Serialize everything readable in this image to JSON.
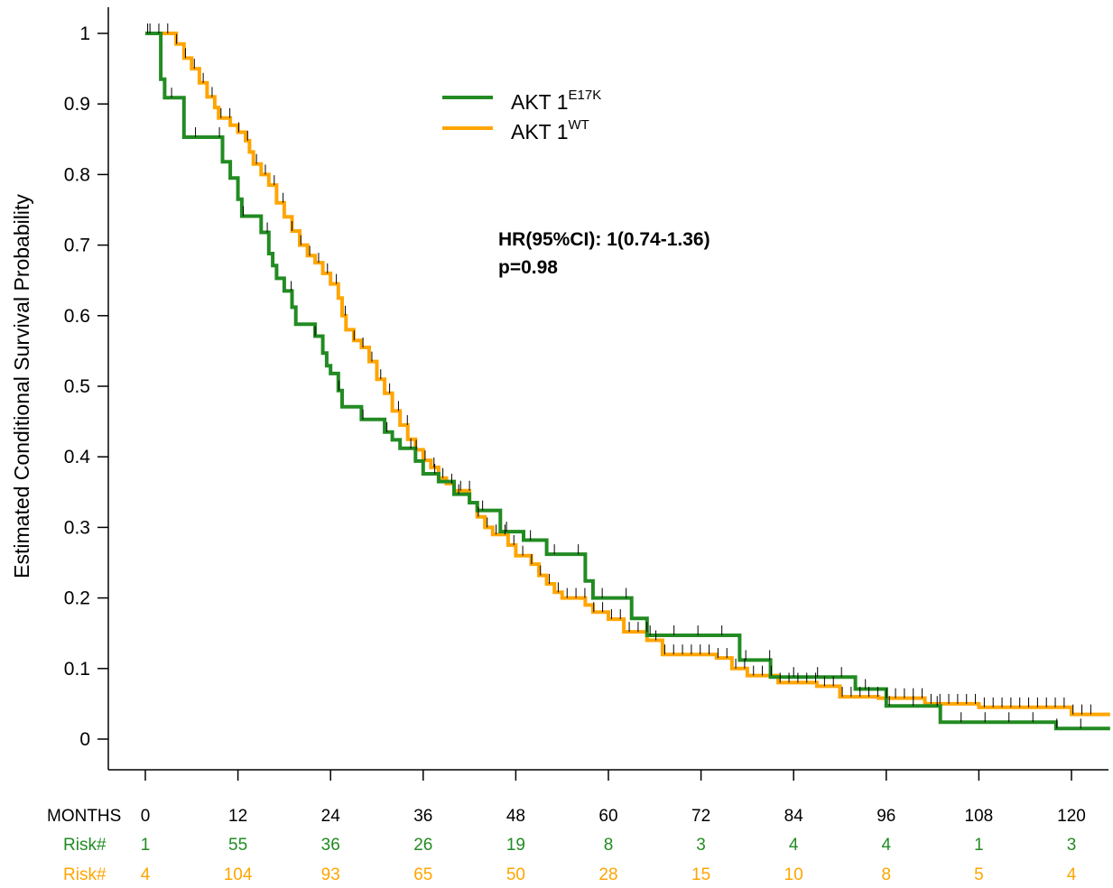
{
  "chart_data": {
    "type": "line",
    "step": true,
    "ylabel": "Estimated Conditional Survival Probability",
    "xlabel": "",
    "xlim": [
      -8,
      125
    ],
    "ylim": [
      0,
      1
    ],
    "x_ticks": [
      0,
      12,
      24,
      36,
      48,
      60,
      72,
      84,
      96,
      108,
      120
    ],
    "y_ticks": [
      0,
      0.1,
      0.2,
      0.3,
      0.4,
      0.5,
      0.6,
      0.7,
      0.8,
      0.9,
      1
    ],
    "y_tick_labels": [
      "0",
      "0.1",
      "0.2",
      "0.3",
      "0.4",
      "0.5",
      "0.6",
      "0.7",
      "0.8",
      "0.9",
      "1"
    ],
    "grid": false,
    "legend_position": "top-center",
    "annotation": {
      "hr_line": "HR(95%CI): 1(0.74-1.36)",
      "p_line": "p=0.98"
    },
    "series": [
      {
        "name": "AKT 1",
        "name_sup": "E17K",
        "color": "#228B22",
        "points": [
          [
            0,
            1.0
          ],
          [
            2,
            1.0
          ],
          [
            2,
            0.935
          ],
          [
            2.5,
            0.935
          ],
          [
            2.5,
            0.909
          ],
          [
            5,
            0.909
          ],
          [
            5,
            0.853
          ],
          [
            10,
            0.853
          ],
          [
            10,
            0.818
          ],
          [
            11,
            0.818
          ],
          [
            11,
            0.795
          ],
          [
            12,
            0.795
          ],
          [
            12,
            0.765
          ],
          [
            12.5,
            0.765
          ],
          [
            12.5,
            0.741
          ],
          [
            15,
            0.741
          ],
          [
            15,
            0.718
          ],
          [
            16,
            0.718
          ],
          [
            16,
            0.688
          ],
          [
            16.5,
            0.688
          ],
          [
            16.5,
            0.671
          ],
          [
            17,
            0.671
          ],
          [
            17,
            0.653
          ],
          [
            18,
            0.653
          ],
          [
            18,
            0.635
          ],
          [
            19,
            0.635
          ],
          [
            19,
            0.612
          ],
          [
            19.5,
            0.612
          ],
          [
            19.5,
            0.588
          ],
          [
            22,
            0.588
          ],
          [
            22,
            0.571
          ],
          [
            23,
            0.571
          ],
          [
            23,
            0.547
          ],
          [
            23.5,
            0.547
          ],
          [
            23.5,
            0.529
          ],
          [
            24,
            0.529
          ],
          [
            24,
            0.518
          ],
          [
            25,
            0.518
          ],
          [
            25,
            0.494
          ],
          [
            25.5,
            0.494
          ],
          [
            25.5,
            0.471
          ],
          [
            28,
            0.471
          ],
          [
            28,
            0.453
          ],
          [
            31,
            0.453
          ],
          [
            31,
            0.435
          ],
          [
            32,
            0.435
          ],
          [
            32,
            0.424
          ],
          [
            33,
            0.424
          ],
          [
            33,
            0.412
          ],
          [
            35,
            0.412
          ],
          [
            35,
            0.394
          ],
          [
            36,
            0.394
          ],
          [
            36,
            0.376
          ],
          [
            38,
            0.376
          ],
          [
            38,
            0.365
          ],
          [
            40,
            0.365
          ],
          [
            40,
            0.347
          ],
          [
            42,
            0.347
          ],
          [
            42,
            0.335
          ],
          [
            43,
            0.335
          ],
          [
            43,
            0.324
          ],
          [
            46,
            0.324
          ],
          [
            46,
            0.294
          ],
          [
            49,
            0.294
          ],
          [
            49,
            0.282
          ],
          [
            52,
            0.282
          ],
          [
            52,
            0.262
          ],
          [
            57,
            0.262
          ],
          [
            57,
            0.224
          ],
          [
            58,
            0.224
          ],
          [
            58,
            0.2
          ],
          [
            63,
            0.2
          ],
          [
            63,
            0.171
          ],
          [
            65,
            0.171
          ],
          [
            65,
            0.147
          ],
          [
            77,
            0.147
          ],
          [
            77,
            0.112
          ],
          [
            81,
            0.112
          ],
          [
            81,
            0.088
          ],
          [
            92,
            0.088
          ],
          [
            92,
            0.071
          ],
          [
            96,
            0.071
          ],
          [
            96,
            0.047
          ],
          [
            103,
            0.047
          ],
          [
            103,
            0.024
          ],
          [
            118,
            0.024
          ],
          [
            118,
            0.015
          ],
          [
            125,
            0.015
          ]
        ]
      },
      {
        "name": "AKT 1",
        "name_sup": "WT",
        "color": "#FFA500",
        "points": [
          [
            0,
            1.0
          ],
          [
            4,
            1.0
          ],
          [
            4,
            0.985
          ],
          [
            5,
            0.985
          ],
          [
            5,
            0.965
          ],
          [
            6,
            0.965
          ],
          [
            6,
            0.95
          ],
          [
            7,
            0.95
          ],
          [
            7,
            0.93
          ],
          [
            8,
            0.93
          ],
          [
            8,
            0.91
          ],
          [
            9,
            0.91
          ],
          [
            9,
            0.895
          ],
          [
            9.5,
            0.895
          ],
          [
            9.5,
            0.88
          ],
          [
            11,
            0.88
          ],
          [
            11,
            0.87
          ],
          [
            12,
            0.87
          ],
          [
            12,
            0.86
          ],
          [
            13,
            0.86
          ],
          [
            13,
            0.848
          ],
          [
            13.5,
            0.848
          ],
          [
            13.5,
            0.832
          ],
          [
            14,
            0.832
          ],
          [
            14,
            0.815
          ],
          [
            15,
            0.815
          ],
          [
            15,
            0.8
          ],
          [
            16,
            0.8
          ],
          [
            16,
            0.785
          ],
          [
            17,
            0.785
          ],
          [
            17,
            0.76
          ],
          [
            18,
            0.76
          ],
          [
            18,
            0.74
          ],
          [
            19,
            0.74
          ],
          [
            19,
            0.72
          ],
          [
            20,
            0.72
          ],
          [
            20,
            0.7
          ],
          [
            21,
            0.7
          ],
          [
            21,
            0.685
          ],
          [
            22,
            0.685
          ],
          [
            22,
            0.675
          ],
          [
            23,
            0.675
          ],
          [
            23,
            0.66
          ],
          [
            24,
            0.66
          ],
          [
            24,
            0.645
          ],
          [
            25,
            0.645
          ],
          [
            25,
            0.625
          ],
          [
            25.5,
            0.625
          ],
          [
            25.5,
            0.6
          ],
          [
            26,
            0.6
          ],
          [
            26,
            0.58
          ],
          [
            27,
            0.58
          ],
          [
            27,
            0.565
          ],
          [
            28,
            0.565
          ],
          [
            28,
            0.555
          ],
          [
            29,
            0.555
          ],
          [
            29,
            0.535
          ],
          [
            30,
            0.535
          ],
          [
            30,
            0.51
          ],
          [
            31,
            0.51
          ],
          [
            31,
            0.49
          ],
          [
            32,
            0.49
          ],
          [
            32,
            0.465
          ],
          [
            33,
            0.465
          ],
          [
            33,
            0.445
          ],
          [
            34,
            0.445
          ],
          [
            34,
            0.425
          ],
          [
            35,
            0.425
          ],
          [
            35,
            0.41
          ],
          [
            36,
            0.41
          ],
          [
            36,
            0.395
          ],
          [
            37,
            0.395
          ],
          [
            37,
            0.385
          ],
          [
            38,
            0.385
          ],
          [
            38,
            0.37
          ],
          [
            39,
            0.37
          ],
          [
            39,
            0.362
          ],
          [
            40,
            0.362
          ],
          [
            40,
            0.352
          ],
          [
            42,
            0.352
          ],
          [
            42,
            0.335
          ],
          [
            43,
            0.335
          ],
          [
            43,
            0.315
          ],
          [
            44,
            0.315
          ],
          [
            44,
            0.3
          ],
          [
            45,
            0.3
          ],
          [
            45,
            0.29
          ],
          [
            47,
            0.29
          ],
          [
            47,
            0.275
          ],
          [
            48,
            0.275
          ],
          [
            48,
            0.26
          ],
          [
            50,
            0.26
          ],
          [
            50,
            0.248
          ],
          [
            51,
            0.248
          ],
          [
            51,
            0.232
          ],
          [
            52,
            0.232
          ],
          [
            52,
            0.22
          ],
          [
            53,
            0.22
          ],
          [
            53,
            0.208
          ],
          [
            54,
            0.208
          ],
          [
            54,
            0.2
          ],
          [
            57,
            0.2
          ],
          [
            57,
            0.19
          ],
          [
            58,
            0.19
          ],
          [
            58,
            0.18
          ],
          [
            60,
            0.18
          ],
          [
            60,
            0.17
          ],
          [
            62,
            0.17
          ],
          [
            62,
            0.152
          ],
          [
            65,
            0.152
          ],
          [
            65,
            0.14
          ],
          [
            67,
            0.14
          ],
          [
            67,
            0.12
          ],
          [
            74,
            0.12
          ],
          [
            74,
            0.115
          ],
          [
            76,
            0.115
          ],
          [
            76,
            0.1
          ],
          [
            78,
            0.1
          ],
          [
            78,
            0.09
          ],
          [
            82,
            0.09
          ],
          [
            82,
            0.08
          ],
          [
            87,
            0.08
          ],
          [
            87,
            0.075
          ],
          [
            90,
            0.075
          ],
          [
            90,
            0.06
          ],
          [
            95,
            0.06
          ],
          [
            95,
            0.058
          ],
          [
            101,
            0.058
          ],
          [
            101,
            0.05
          ],
          [
            108,
            0.05
          ],
          [
            108,
            0.045
          ],
          [
            120,
            0.045
          ],
          [
            120,
            0.035
          ],
          [
            125,
            0.035
          ]
        ]
      }
    ]
  },
  "risk_table": {
    "header_label": "MONTHS",
    "months": [
      "0",
      "12",
      "24",
      "36",
      "48",
      "60",
      "72",
      "84",
      "96",
      "108",
      "120"
    ],
    "rows": [
      {
        "label": "Risk#",
        "color": "#228B22",
        "values": [
          "1",
          "55",
          "36",
          "26",
          "19",
          "8",
          "3",
          "4",
          "4",
          "1",
          "3"
        ]
      },
      {
        "label": "Risk#",
        "color": "#FFA500",
        "values": [
          "4",
          "104",
          "93",
          "65",
          "50",
          "28",
          "15",
          "10",
          "8",
          "5",
          "4"
        ]
      }
    ]
  }
}
